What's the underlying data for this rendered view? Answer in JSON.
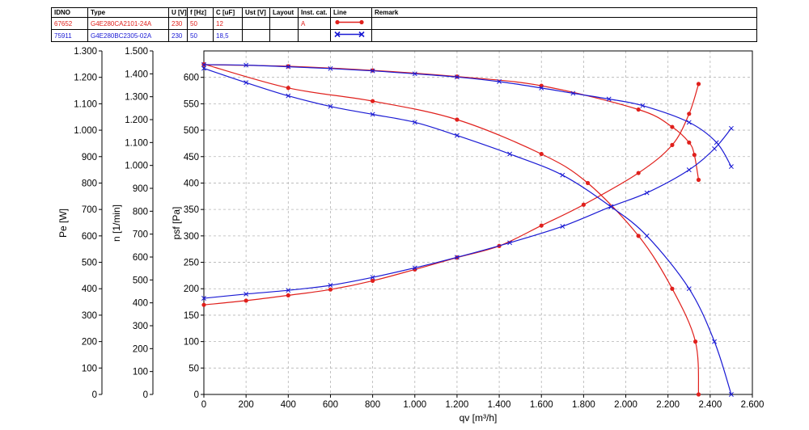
{
  "spec_table": {
    "headers": [
      "IDNO",
      "Type",
      "U [V]",
      "f [Hz]",
      "C [uF]",
      "Ust [V]",
      "Layout",
      "Inst. cat.",
      "Line",
      "Remark"
    ],
    "rows": [
      {
        "idno": "67652",
        "type": "G4E280CA2101-24A",
        "u": "230",
        "f": "50",
        "c": "12",
        "ust": "",
        "layout": "",
        "inst_cat": "A",
        "line_color": "#e0201c",
        "line_marker": "dot",
        "remark": ""
      },
      {
        "idno": "75911",
        "type": "G4E280BC2305-02A",
        "u": "230",
        "f": "50",
        "c": "18,5",
        "ust": "",
        "layout": "",
        "inst_cat": "",
        "line_color": "#1a1ad4",
        "line_marker": "x",
        "remark": ""
      }
    ]
  },
  "chart_data": {
    "type": "line",
    "xlabel": "qv [m³/h]",
    "xlim": [
      0,
      2600
    ],
    "x_ticks": [
      "0",
      "200",
      "400",
      "600",
      "800",
      "1.000",
      "1.200",
      "1.400",
      "1.600",
      "1.800",
      "2.000",
      "2.200",
      "2.400",
      "2.600"
    ],
    "grid": true,
    "axes": {
      "psf": {
        "label": "psf [Pa]",
        "lim": [
          0,
          650
        ],
        "ticks": [
          "0",
          "50",
          "100",
          "150",
          "200",
          "250",
          "300",
          "350",
          "400",
          "450",
          "500",
          "550",
          "600"
        ]
      },
      "n": {
        "label": "n [1/min]",
        "lim": [
          0,
          1500
        ],
        "ticks": [
          "0",
          "100",
          "200",
          "300",
          "400",
          "500",
          "600",
          "700",
          "800",
          "900",
          "1.000",
          "1.100",
          "1.200",
          "1.300",
          "1.400",
          "1.500"
        ]
      },
      "pe": {
        "label": "Pe [W]",
        "lim": [
          0,
          1300
        ],
        "ticks": [
          "0",
          "100",
          "200",
          "300",
          "400",
          "500",
          "600",
          "700",
          "800",
          "900",
          "1.000",
          "1.100",
          "1.200",
          "1.300"
        ]
      }
    },
    "series": [
      {
        "color": "#e0201c",
        "marker": "dot",
        "axis": "psf",
        "x": [
          0,
          400,
          800,
          1200,
          1600,
          1820,
          2060,
          2220,
          2330,
          2345
        ],
        "y": [
          625,
          580,
          555,
          520,
          455,
          400,
          300,
          200,
          100,
          0
        ]
      },
      {
        "color": "#e0201c",
        "marker": "dot",
        "axis": "n",
        "x": [
          0,
          400,
          800,
          1200,
          1600,
          2060,
          2220,
          2300,
          2325,
          2345
        ],
        "y": [
          1440,
          1433,
          1415,
          1388,
          1348,
          1244,
          1168,
          1100,
          1046,
          937
        ]
      },
      {
        "color": "#e0201c",
        "marker": "dot",
        "axis": "pe",
        "x": [
          0,
          200,
          400,
          600,
          800,
          1000,
          1200,
          1400,
          1600,
          1800,
          2060,
          2220,
          2300,
          2345
        ],
        "y": [
          339,
          355,
          375,
          397,
          430,
          473,
          518,
          562,
          639,
          718,
          838,
          944,
          1062,
          1175
        ]
      },
      {
        "color": "#1a1ad4",
        "marker": "x",
        "axis": "psf",
        "x": [
          0,
          200,
          400,
          600,
          800,
          1000,
          1200,
          1450,
          1700,
          1930,
          2100,
          2300,
          2420,
          2500
        ],
        "y": [
          617,
          590,
          565,
          545,
          530,
          515,
          490,
          455,
          415,
          355,
          300,
          200,
          100,
          0
        ]
      },
      {
        "color": "#1a1ad4",
        "marker": "x",
        "axis": "n",
        "x": [
          0,
          200,
          400,
          600,
          800,
          1000,
          1200,
          1400,
          1600,
          1750,
          1920,
          2080,
          2300,
          2430,
          2500
        ],
        "y": [
          1440,
          1438,
          1431,
          1423,
          1413,
          1400,
          1386,
          1366,
          1338,
          1315,
          1290,
          1261,
          1188,
          1100,
          995
        ]
      },
      {
        "color": "#1a1ad4",
        "marker": "x",
        "axis": "pe",
        "x": [
          0,
          200,
          400,
          600,
          800,
          1000,
          1200,
          1450,
          1700,
          1930,
          2100,
          2300,
          2420,
          2500
        ],
        "y": [
          364,
          380,
          394,
          413,
          443,
          479,
          519,
          574,
          636,
          711,
          763,
          850,
          930,
          1007
        ]
      }
    ]
  }
}
